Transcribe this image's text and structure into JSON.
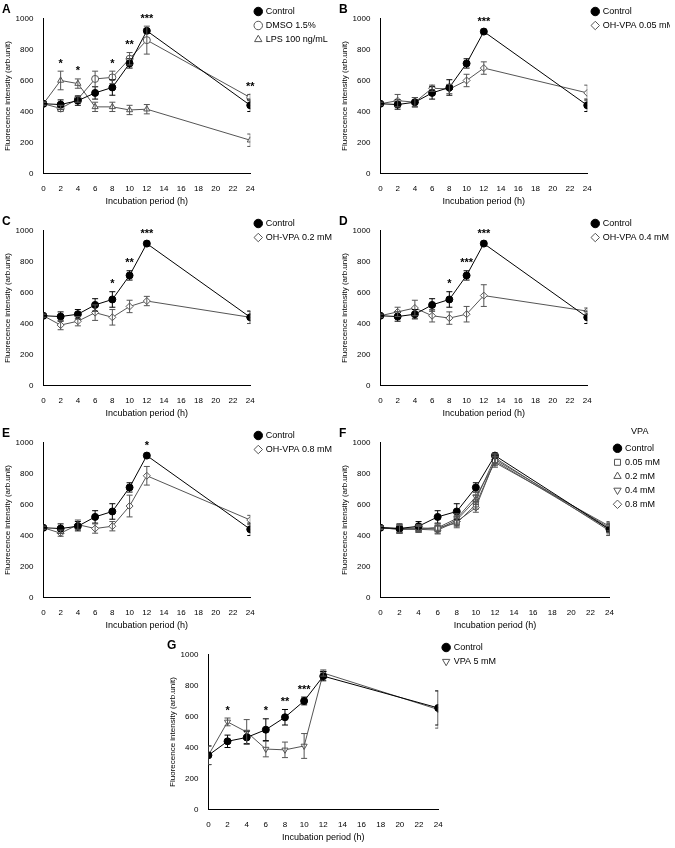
{
  "chart_data": [
    {
      "type": "line",
      "title": "A",
      "x_label": "Incubation period (h)",
      "y_label": "Fluorecence intensity (arb.unit)",
      "x": [
        0,
        2,
        4,
        6,
        8,
        10,
        12,
        24
      ],
      "xlim": [
        0,
        24
      ],
      "xticks": [
        0,
        2,
        4,
        6,
        8,
        10,
        12,
        14,
        16,
        18,
        20,
        22,
        24
      ],
      "ylim": [
        0,
        1000
      ],
      "yticks": [
        0,
        200,
        400,
        600,
        800,
        1000
      ],
      "grid": false,
      "legend": "right",
      "series": [
        {
          "name": "Control",
          "color": "#000000",
          "marker": "filled_circle",
          "values": [
            450,
            445,
            470,
            520,
            555,
            710,
            920,
            440
          ],
          "errors": [
            10,
            30,
            30,
            40,
            50,
            30,
            15,
            40
          ]
        },
        {
          "name": "DMSO 1.5%",
          "color": "#555555",
          "marker": "circle",
          "values": [
            450,
            420,
            480,
            610,
            620,
            740,
            860,
            490
          ],
          "errors": [
            10,
            20,
            20,
            50,
            40,
            40,
            90,
            20
          ]
        },
        {
          "name": "LPS 100 ng/mL",
          "color": "#555555",
          "marker": "triangle",
          "values": [
            450,
            600,
            580,
            430,
            430,
            410,
            415,
            215
          ],
          "errors": [
            10,
            60,
            30,
            30,
            30,
            30,
            30,
            40
          ]
        }
      ],
      "annotations": [
        {
          "x": 2,
          "text": "*"
        },
        {
          "x": 4,
          "text": "*"
        },
        {
          "x": 8,
          "text": "*"
        },
        {
          "x": 10,
          "text": "**"
        },
        {
          "x": 12,
          "text": "***"
        },
        {
          "x": 24,
          "text": "**"
        }
      ]
    },
    {
      "type": "line",
      "title": "B",
      "x_label": "Incubation period (h)",
      "y_label": "Fluorecence intensity (arb.unit)",
      "x": [
        0,
        2,
        4,
        6,
        8,
        10,
        12,
        24
      ],
      "xlim": [
        0,
        24
      ],
      "xticks": [
        0,
        2,
        4,
        6,
        8,
        10,
        12,
        14,
        16,
        18,
        20,
        22,
        24
      ],
      "ylim": [
        0,
        1000
      ],
      "yticks": [
        0,
        200,
        400,
        600,
        800,
        1000
      ],
      "grid": false,
      "legend": "right",
      "series": [
        {
          "name": "Control",
          "color": "#000000",
          "marker": "filled_circle",
          "values": [
            450,
            445,
            460,
            520,
            555,
            710,
            915,
            440
          ],
          "errors": [
            10,
            30,
            30,
            40,
            50,
            30,
            15,
            40
          ]
        },
        {
          "name": "OH-VPA 0.05 mM",
          "color": "#555555",
          "marker": "diamond",
          "values": [
            450,
            470,
            460,
            550,
            545,
            600,
            680,
            520
          ],
          "errors": [
            10,
            40,
            30,
            20,
            30,
            40,
            40,
            50
          ]
        }
      ],
      "annotations": [
        {
          "x": 12,
          "text": "***"
        }
      ]
    },
    {
      "type": "line",
      "title": "C",
      "x_label": "Incubation period (h)",
      "y_label": "Fluorecence intensity (arb.unit)",
      "x": [
        0,
        2,
        4,
        6,
        8,
        10,
        12,
        24
      ],
      "xlim": [
        0,
        24
      ],
      "xticks": [
        0,
        2,
        4,
        6,
        8,
        10,
        12,
        14,
        16,
        18,
        20,
        22,
        24
      ],
      "ylim": [
        0,
        1000
      ],
      "yticks": [
        0,
        200,
        400,
        600,
        800,
        1000
      ],
      "grid": false,
      "legend": "right",
      "series": [
        {
          "name": "Control",
          "color": "#000000",
          "marker": "filled_circle",
          "values": [
            450,
            445,
            460,
            520,
            555,
            710,
            915,
            440
          ],
          "errors": [
            10,
            30,
            30,
            40,
            50,
            30,
            15,
            40
          ]
        },
        {
          "name": "OH-VPA 0.2 mM",
          "color": "#555555",
          "marker": "diamond",
          "values": [
            450,
            390,
            415,
            470,
            440,
            510,
            545,
            440
          ],
          "errors": [
            10,
            30,
            30,
            50,
            50,
            40,
            30,
            40
          ]
        }
      ],
      "annotations": [
        {
          "x": 8,
          "text": "*"
        },
        {
          "x": 10,
          "text": "**"
        },
        {
          "x": 12,
          "text": "***"
        }
      ]
    },
    {
      "type": "line",
      "title": "D",
      "x_label": "Incubation period (h)",
      "y_label": "Fluorecence intensity (arb.unit)",
      "x": [
        0,
        2,
        4,
        6,
        8,
        10,
        12,
        24
      ],
      "xlim": [
        0,
        24
      ],
      "xticks": [
        0,
        2,
        4,
        6,
        8,
        10,
        12,
        14,
        16,
        18,
        20,
        22,
        24
      ],
      "ylim": [
        0,
        1000
      ],
      "yticks": [
        0,
        200,
        400,
        600,
        800,
        1000
      ],
      "grid": false,
      "legend": "right",
      "series": [
        {
          "name": "Control",
          "color": "#000000",
          "marker": "filled_circle",
          "values": [
            450,
            445,
            460,
            520,
            555,
            710,
            915,
            440
          ],
          "errors": [
            10,
            30,
            30,
            40,
            50,
            30,
            15,
            40
          ]
        },
        {
          "name": "OH-VPA 0.4 mM",
          "color": "#555555",
          "marker": "diamond",
          "values": [
            450,
            475,
            500,
            450,
            435,
            460,
            580,
            480
          ],
          "errors": [
            10,
            30,
            50,
            40,
            40,
            50,
            70,
            20
          ]
        }
      ],
      "annotations": [
        {
          "x": 8,
          "text": "*"
        },
        {
          "x": 10,
          "text": "***"
        },
        {
          "x": 12,
          "text": "***"
        }
      ]
    },
    {
      "type": "line",
      "title": "E",
      "x_label": "Incubation period (h)",
      "y_label": "Fluorecence intensity (arb.unit)",
      "x": [
        0,
        2,
        4,
        6,
        8,
        10,
        12,
        24
      ],
      "xlim": [
        0,
        24
      ],
      "xticks": [
        0,
        2,
        4,
        6,
        8,
        10,
        12,
        14,
        16,
        18,
        20,
        22,
        24
      ],
      "ylim": [
        0,
        1000
      ],
      "yticks": [
        0,
        200,
        400,
        600,
        800,
        1000
      ],
      "grid": false,
      "legend": "right",
      "series": [
        {
          "name": "Control",
          "color": "#000000",
          "marker": "filled_circle",
          "values": [
            450,
            445,
            460,
            520,
            555,
            710,
            915,
            440
          ],
          "errors": [
            10,
            30,
            30,
            40,
            50,
            30,
            15,
            40
          ]
        },
        {
          "name": "OH-VPA 0.8 mM",
          "color": "#555555",
          "marker": "diamond",
          "values": [
            450,
            415,
            470,
            445,
            460,
            590,
            785,
            500
          ],
          "errors": [
            10,
            20,
            30,
            30,
            30,
            70,
            60,
            30
          ]
        }
      ],
      "annotations": [
        {
          "x": 12,
          "text": "*"
        }
      ]
    },
    {
      "type": "line",
      "title": "F",
      "x_label": "Incubation period (h)",
      "y_label": "Fluorecence intensity (arb.unit)",
      "x": [
        0,
        2,
        4,
        6,
        8,
        10,
        12,
        24
      ],
      "xlim": [
        0,
        24
      ],
      "xticks": [
        0,
        2,
        4,
        6,
        8,
        10,
        12,
        14,
        16,
        18,
        20,
        22,
        24
      ],
      "ylim": [
        0,
        1000
      ],
      "yticks": [
        0,
        200,
        400,
        600,
        800,
        1000
      ],
      "grid": false,
      "legend": "right",
      "legend_title": "VPA",
      "series": [
        {
          "name": "Control",
          "color": "#000000",
          "marker": "filled_circle",
          "values": [
            450,
            445,
            460,
            520,
            555,
            710,
            915,
            440
          ],
          "errors": [
            10,
            30,
            30,
            40,
            50,
            30,
            15,
            40
          ]
        },
        {
          "name": "0.05 mM",
          "color": "#555555",
          "marker": "square",
          "values": [
            450,
            440,
            440,
            450,
            480,
            600,
            880,
            440
          ],
          "errors": [
            10,
            25,
            20,
            25,
            30,
            30,
            30,
            30
          ]
        },
        {
          "name": "0.2 mM",
          "color": "#555555",
          "marker": "triangle",
          "values": [
            450,
            445,
            450,
            440,
            500,
            630,
            900,
            430
          ],
          "errors": [
            10,
            25,
            20,
            25,
            30,
            30,
            30,
            30
          ]
        },
        {
          "name": "0.4 mM",
          "color": "#555555",
          "marker": "triangle_down",
          "values": [
            450,
            440,
            445,
            450,
            510,
            650,
            870,
            460
          ],
          "errors": [
            10,
            25,
            20,
            25,
            30,
            30,
            30,
            30
          ]
        },
        {
          "name": "0.8 mM",
          "color": "#555555",
          "marker": "diamond",
          "values": [
            450,
            445,
            440,
            435,
            490,
            580,
            890,
            450
          ],
          "errors": [
            10,
            25,
            20,
            25,
            30,
            30,
            30,
            30
          ]
        }
      ],
      "annotations": []
    },
    {
      "type": "line",
      "title": "G",
      "x_label": "Incubation period (h)",
      "y_label": "Fluorecence intensity (arb.unit)",
      "x": [
        0,
        2,
        4,
        6,
        8,
        10,
        12,
        24
      ],
      "xlim": [
        0,
        24
      ],
      "xticks": [
        0,
        2,
        4,
        6,
        8,
        10,
        12,
        14,
        16,
        18,
        20,
        22,
        24
      ],
      "ylim": [
        0,
        1000
      ],
      "yticks": [
        0,
        200,
        400,
        600,
        800,
        1000
      ],
      "grid": false,
      "legend": "right",
      "series": [
        {
          "name": "Control",
          "color": "#000000",
          "marker": "filled_circle",
          "values": [
            350,
            440,
            465,
            515,
            595,
            700,
            860,
            655
          ],
          "errors": [
            60,
            40,
            40,
            70,
            50,
            25,
            30,
            110
          ]
        },
        {
          "name": "VPA 5 mM",
          "color": "#555555",
          "marker": "triangle_down",
          "values": [
            350,
            565,
            500,
            390,
            385,
            410,
            880,
            645
          ],
          "errors": [
            60,
            25,
            80,
            50,
            50,
            80,
            20,
            120
          ]
        }
      ],
      "annotations": [
        {
          "x": 2,
          "text": "*"
        },
        {
          "x": 6,
          "text": "*"
        },
        {
          "x": 8,
          "text": "**"
        },
        {
          "x": 10,
          "text": "***"
        }
      ]
    }
  ]
}
